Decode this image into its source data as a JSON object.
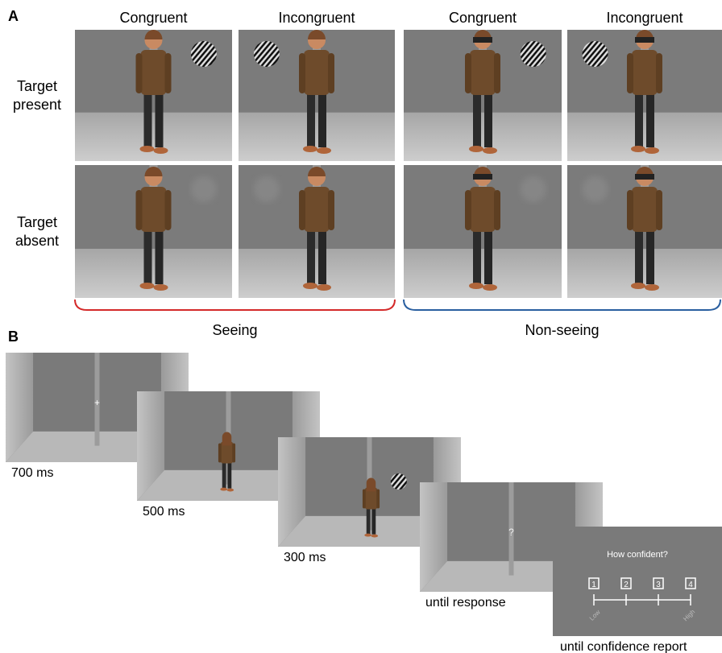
{
  "panel_a": {
    "label": "A",
    "columns": [
      "Congruent",
      "Incongruent",
      "Congruent",
      "Incongruent"
    ],
    "rows": [
      "Target present",
      "Target absent"
    ],
    "groups": [
      "Seeing",
      "Non-seeing"
    ]
  },
  "panel_b": {
    "label": "B",
    "steps": [
      {
        "duration": "700 ms"
      },
      {
        "duration": "500 ms"
      },
      {
        "duration": "300 ms"
      },
      {
        "duration": "until response"
      },
      {
        "duration": "until confidence report"
      }
    ],
    "fixation": "+",
    "question_mark": "?",
    "confidence": {
      "question": "How confident?",
      "options": [
        "1",
        "2",
        "3",
        "4"
      ],
      "low": "Low",
      "high": "High"
    }
  }
}
